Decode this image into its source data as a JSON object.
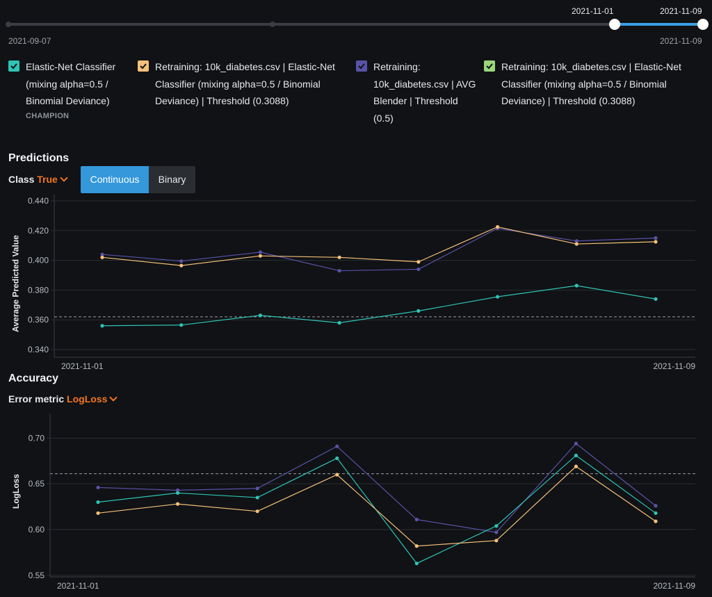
{
  "timeline": {
    "start_label": "2021-09-07",
    "end_label": "2021-11-09",
    "range_start_label": "2021-11-01",
    "range_end_label": "2021-11-09",
    "accent": "#3b9ee8"
  },
  "legend": [
    {
      "lines": [
        "Elastic-Net Classifier",
        "(mixing alpha=0.5 /",
        "Binomial Deviance)"
      ],
      "badge": "CHAMPION",
      "color": "#2ec4b6",
      "checked": true
    },
    {
      "lines": [
        "Retraining: 10k_diabetes.csv | Elastic-Net",
        "Classifier (mixing alpha=0.5 / Binomial",
        "Deviance) | Threshold (0.3088)"
      ],
      "color": "#f5c07a",
      "checked": true
    },
    {
      "lines": [
        "Retraining:",
        "10k_diabetes.csv | AVG",
        "Blender | Threshold",
        "(0.5)"
      ],
      "color": "#5a52a8",
      "checked": true
    },
    {
      "lines": [
        "Retraining: 10k_diabetes.csv | Elastic-Net",
        "Classifier (mixing alpha=0.5 / Binomial",
        "Deviance) | Threshold (0.3088)"
      ],
      "color": "#9bd67b",
      "checked": true
    }
  ],
  "predictions": {
    "title": "Predictions",
    "class_label": "Class",
    "class_value": "True",
    "toggle": {
      "continuous": "Continuous",
      "binary": "Binary",
      "active": "continuous"
    }
  },
  "accuracy": {
    "title": "Accuracy",
    "metric_label": "Error metric",
    "metric_value": "LogLoss"
  },
  "chart_data": [
    {
      "type": "line",
      "ylabel": "Average Predicted Value",
      "ylim": [
        0.34,
        0.44
      ],
      "yticks": [
        "0.340",
        "0.360",
        "0.380",
        "0.400",
        "0.420",
        "0.440"
      ],
      "ytick_values": [
        0.34,
        0.36,
        0.38,
        0.4,
        0.42,
        0.44
      ],
      "x_start_label": "2021-11-01",
      "x_end_label": "2021-11-09",
      "reference_line": 0.362,
      "series": [
        {
          "color": "#5a52a8",
          "values": [
            0.404,
            0.3995,
            0.4055,
            0.393,
            0.394,
            0.4215,
            0.413,
            0.415
          ]
        },
        {
          "color": "#f5c07a",
          "values": [
            0.402,
            0.3965,
            0.403,
            0.402,
            0.399,
            0.4225,
            0.411,
            0.4125
          ]
        },
        {
          "color": "#2ec4b6",
          "values": [
            0.356,
            0.3565,
            0.363,
            0.358,
            0.366,
            0.3755,
            0.383,
            0.374
          ]
        }
      ],
      "grid": true
    },
    {
      "type": "line",
      "ylabel": "LogLoss",
      "ylim": [
        0.54,
        0.72
      ],
      "yticks": [
        "0.55",
        "0.60",
        "0.65",
        "0.70"
      ],
      "ytick_values": [
        0.55,
        0.6,
        0.65,
        0.7
      ],
      "x_start_label": "2021-11-01",
      "x_end_label": "2021-11-09",
      "reference_line": 0.661,
      "series": [
        {
          "color": "#5a52a8",
          "values": [
            0.646,
            0.643,
            0.645,
            0.691,
            0.611,
            0.597,
            0.694,
            0.626
          ]
        },
        {
          "color": "#2ec4b6",
          "values": [
            0.63,
            0.64,
            0.635,
            0.678,
            0.563,
            0.604,
            0.681,
            0.618
          ]
        },
        {
          "color": "#f5c07a",
          "values": [
            0.618,
            0.628,
            0.62,
            0.66,
            0.582,
            0.588,
            0.669,
            0.609
          ]
        }
      ],
      "grid": true
    }
  ]
}
